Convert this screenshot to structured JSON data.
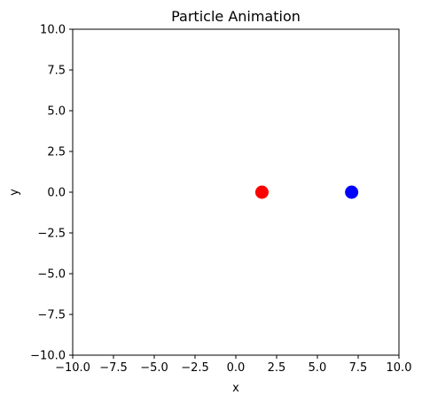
{
  "chart_data": {
    "type": "scatter",
    "title": "Particle Animation",
    "xlabel": "x",
    "ylabel": "y",
    "xlim": [
      -10,
      10
    ],
    "ylim": [
      -10,
      10
    ],
    "grid": false,
    "xticks": [
      -10.0,
      -7.5,
      -5.0,
      -2.5,
      0.0,
      2.5,
      5.0,
      7.5,
      10.0
    ],
    "yticks": [
      -10.0,
      -7.5,
      -5.0,
      -2.5,
      0.0,
      2.5,
      5.0,
      7.5,
      10.0
    ],
    "xtick_labels": [
      "−10.0",
      "−7.5",
      "−5.0",
      "−2.5",
      "0.0",
      "2.5",
      "5.0",
      "7.5",
      "10.0"
    ],
    "ytick_labels": [
      "−10.0",
      "−7.5",
      "−5.0",
      "−2.5",
      "0.0",
      "2.5",
      "5.0",
      "7.5",
      "10.0"
    ],
    "points": [
      {
        "x": 1.6,
        "y": 0.0,
        "color": "#ff0000"
      },
      {
        "x": 7.1,
        "y": 0.0,
        "color": "#0000ff"
      }
    ]
  }
}
